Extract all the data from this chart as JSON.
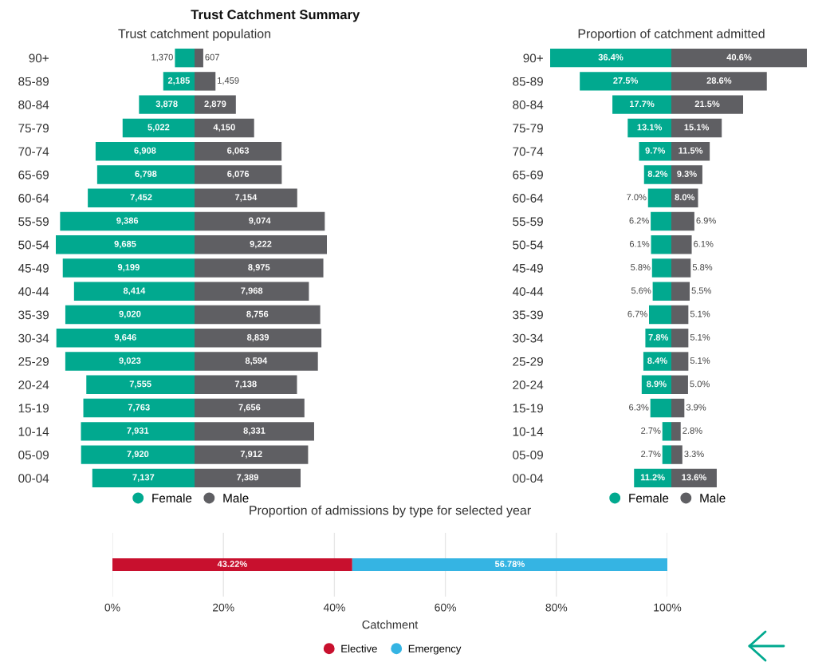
{
  "chart_data": [
    {
      "type": "bar",
      "orientation": "horizontal",
      "subtitle": "Trust catchment population",
      "tick_labels": "y",
      "legend": "bottom right",
      "data_labels": true,
      "xlim": [
        9685,
        0
      ],
      "categories": [
        "90+",
        "85-89",
        "80-84",
        "75-79",
        "70-74",
        "65-69",
        "60-64",
        "55-59",
        "50-54",
        "45-49",
        "40-44",
        "35-39",
        "30-34",
        "25-29",
        "20-24",
        "15-19",
        "10-14",
        "05-09",
        "00-04"
      ],
      "series": [
        {
          "name": "Female",
          "color": "#01a98f",
          "values": [
            1370,
            2185,
            3878,
            5022,
            6908,
            6798,
            7452,
            9386,
            9685,
            9199,
            8414,
            9020,
            9646,
            9023,
            7555,
            7763,
            7931,
            7920,
            7137
          ],
          "value_labels": [
            "1,370",
            "2,185",
            "3,878",
            "5,022",
            "6,908",
            "6,798",
            "7,452",
            "9,386",
            "9,685",
            "9,199",
            "8,414",
            "9,020",
            "9,646",
            "9,023",
            "7,555",
            "7,763",
            "7,931",
            "7,920",
            "7,137"
          ]
        }
      ]
    },
    {
      "type": "bar",
      "orientation": "horizontal",
      "title": "Trust Catchment Summary",
      "legend": "bottom left",
      "data_labels": true,
      "xlim": [
        0,
        9222
      ],
      "categories": [
        null,
        null,
        null,
        null,
        null,
        null,
        null,
        null,
        null,
        null,
        null,
        null,
        null,
        null,
        null,
        null,
        null,
        null,
        null
      ],
      "series": [
        {
          "name": "Male",
          "color": "#5f5f63",
          "values": [
            607,
            1459,
            2879,
            4150,
            6063,
            6076,
            7154,
            9074,
            9222,
            8975,
            7968,
            8756,
            8839,
            8594,
            7138,
            7656,
            8331,
            7912,
            7389
          ],
          "value_labels": [
            "607",
            "1,459",
            "2,879",
            "4,150",
            "6,063",
            "6,076",
            "7,154",
            "9,074",
            "9,222",
            "8,975",
            "7,968",
            "8,756",
            "8,839",
            "8,594",
            "7,138",
            "7,656",
            "8,331",
            "7,912",
            "7,389"
          ]
        }
      ]
    },
    {
      "type": "bar",
      "orientation": "horizontal",
      "subtitle": "Proportion of catchment admitted",
      "tick_labels": "y",
      "legend": "bottom right",
      "data_labels": true,
      "xlim": [
        36.4,
        0
      ],
      "categories": [
        "90+",
        "85-89",
        "80-84",
        "75-79",
        "70-74",
        "65-69",
        "60-64",
        "55-59",
        "50-54",
        "45-49",
        "40-44",
        "35-39",
        "30-34",
        "25-29",
        "20-24",
        "15-19",
        "10-14",
        "05-09",
        "00-04"
      ],
      "series": [
        {
          "name": "Female",
          "color": "#01a98f",
          "values": [
            36.4,
            27.5,
            17.7,
            13.1,
            9.7,
            8.2,
            7.0,
            6.2,
            6.1,
            5.8,
            5.6,
            6.7,
            7.8,
            8.4,
            8.9,
            6.3,
            2.7,
            2.7,
            11.2
          ],
          "value_labels": [
            "36.4%",
            "27.5%",
            "17.7%",
            "13.1%",
            "9.7%",
            "8.2%",
            "7.0%",
            "6.2%",
            "6.1%",
            "5.8%",
            "5.6%",
            "6.7%",
            "7.8%",
            "8.4%",
            "8.9%",
            "6.3%",
            "2.7%",
            "2.7%",
            "11.2%"
          ]
        }
      ]
    },
    {
      "type": "bar",
      "orientation": "horizontal",
      "legend": "bottom left",
      "data_labels": true,
      "xlim": [
        0,
        40.6
      ],
      "categories": [
        null,
        null,
        null,
        null,
        null,
        null,
        null,
        null,
        null,
        null,
        null,
        null,
        null,
        null,
        null,
        null,
        null,
        null,
        null
      ],
      "series": [
        {
          "name": "Male",
          "color": "#5f5f63",
          "values": [
            40.6,
            28.6,
            21.5,
            15.1,
            11.5,
            9.3,
            8.0,
            6.9,
            6.1,
            5.8,
            5.5,
            5.1,
            5.1,
            5.1,
            5.0,
            3.9,
            2.8,
            3.3,
            13.6
          ],
          "value_labels": [
            "40.6%",
            "28.6%",
            "21.5%",
            "15.1%",
            "11.5%",
            "9.3%",
            "8.0%",
            "6.9%",
            "6.1%",
            "5.8%",
            "5.5%",
            "5.1%",
            "5.1%",
            "5.1%",
            "5.0%",
            "3.9%",
            "2.8%",
            "3.3%",
            "13.6%"
          ]
        }
      ]
    },
    {
      "type": "bar",
      "orientation": "horizontal",
      "stacked": true,
      "subtitle": "Proportion of admissions by type for selected year",
      "xlabel": "Catchment",
      "tick_labels": "x",
      "legend": "bottom",
      "grid": "x",
      "data_labels": true,
      "categories": [
        null
      ],
      "xlim": [
        0,
        100
      ],
      "xticks": [
        {
          "value": 0,
          "label": "0%"
        },
        {
          "value": 20,
          "label": "20%"
        },
        {
          "value": 40,
          "label": "40%"
        },
        {
          "value": 60,
          "label": "60%"
        },
        {
          "value": 80,
          "label": "80%"
        },
        {
          "value": 100,
          "label": "100%"
        }
      ],
      "series": [
        {
          "name": "Elective",
          "color": "#c8102e",
          "values": [
            43.22
          ],
          "value_labels": [
            "43.22%"
          ]
        },
        {
          "name": "Emergency",
          "color": "#35b4e3",
          "values": [
            56.78
          ],
          "value_labels": [
            "56.78%"
          ]
        }
      ]
    }
  ]
}
